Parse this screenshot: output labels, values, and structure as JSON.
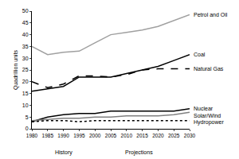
{
  "chart_data": {
    "type": "line",
    "y_label": "Quadrillion units",
    "x": [
      1980,
      1985,
      1990,
      1995,
      2000,
      2005,
      2010,
      2015,
      2020,
      2025,
      2030
    ],
    "series": [
      {
        "name": "Petrol and Oil",
        "color": "#a0a0a0",
        "line_style": "solid",
        "values": [
          35,
          31.5,
          32.5,
          33,
          36.5,
          40,
          41,
          42,
          43.5,
          46,
          48.5
        ]
      },
      {
        "name": "Coal",
        "color": "#000000",
        "line_style": "solid",
        "values": [
          16,
          17,
          18,
          22,
          22,
          22,
          23.5,
          25,
          26.5,
          29,
          31.5
        ]
      },
      {
        "name": "Natural Gas",
        "color": "#000000",
        "line_style": "dash",
        "values": [
          20,
          17.5,
          19,
          22.5,
          22.5,
          22,
          23,
          25,
          25.5,
          25.5,
          25.5
        ]
      },
      {
        "name": "Nuclear",
        "color": "#000000",
        "line_style": "solid",
        "values": [
          3,
          5,
          6,
          6.5,
          6.5,
          7.5,
          7.5,
          7.5,
          7.5,
          7.5,
          8.5
        ]
      },
      {
        "name": "Solar/Wind",
        "color": "#808080",
        "line_style": "solid",
        "values": [
          3.5,
          4,
          4.5,
          4.5,
          5,
          5,
          5.5,
          5.5,
          5.5,
          6,
          7
        ]
      },
      {
        "name": "Hydropower",
        "color": "#000000",
        "line_style": "dot",
        "values": [
          3,
          3.5,
          3.5,
          3,
          3.5,
          3.5,
          3.5,
          3.5,
          3.5,
          3.5,
          3.5
        ]
      }
    ],
    "annotations": [
      "History",
      "Projections"
    ],
    "xlim": [
      1980,
      2030
    ],
    "xticks": [
      1980,
      1985,
      1990,
      1995,
      2000,
      2005,
      2010,
      2015,
      2020,
      2025,
      2030
    ],
    "ylim": [
      0,
      50
    ],
    "yticks": [
      0,
      5,
      10,
      15,
      20,
      25,
      30,
      35,
      40,
      45,
      50
    ],
    "grid": false
  }
}
